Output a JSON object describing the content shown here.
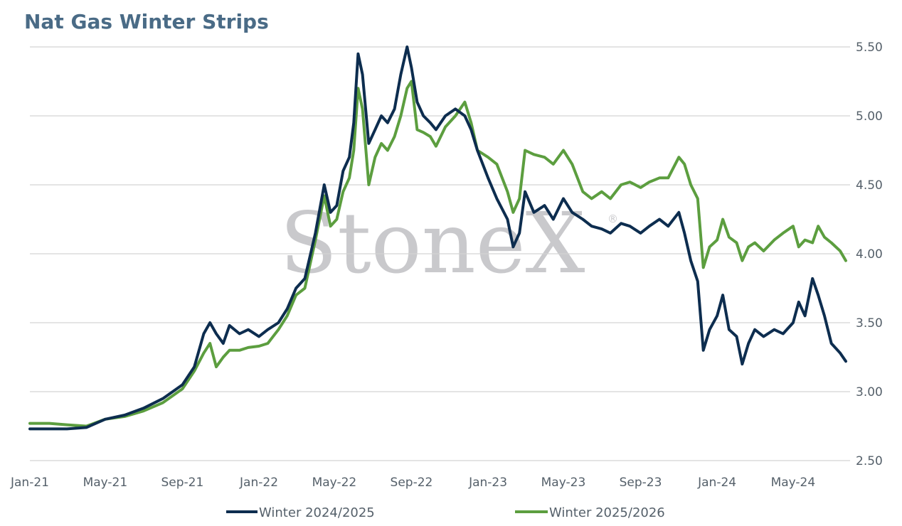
{
  "chart_data": {
    "type": "line",
    "title": "Nat Gas Winter Strips",
    "watermark": "StoneX",
    "watermark_mark": "®",
    "xlabel": "",
    "ylabel": "",
    "ylim": [
      2.5,
      5.5
    ],
    "y_ticks": [
      "2.50",
      "3.00",
      "3.50",
      "4.00",
      "4.50",
      "5.00",
      "5.50"
    ],
    "y_axis_position": "right",
    "grid": true,
    "legend_position": "bottom",
    "x_tick_labels": [
      "Jan-21",
      "May-21",
      "Sep-21",
      "Jan-22",
      "May-22",
      "Sep-22",
      "Jan-23",
      "May-23",
      "Sep-23",
      "Jan-24",
      "May-24"
    ],
    "x_range": [
      "2021-01-01",
      "2024-07-24"
    ],
    "x_ticks": [
      "2021-01-01",
      "2021-05-01",
      "2021-09-01",
      "2022-01-01",
      "2022-05-01",
      "2022-09-01",
      "2023-01-01",
      "2023-05-01",
      "2023-09-01",
      "2024-01-01",
      "2024-05-01"
    ],
    "series": [
      {
        "name": "Winter 2024/2025",
        "color": "#0d2d4f",
        "points": [
          [
            "2021-01-01",
            2.73
          ],
          [
            "2021-02-01",
            2.73
          ],
          [
            "2021-03-01",
            2.73
          ],
          [
            "2021-04-01",
            2.74
          ],
          [
            "2021-05-01",
            2.8
          ],
          [
            "2021-06-01",
            2.83
          ],
          [
            "2021-07-01",
            2.88
          ],
          [
            "2021-08-01",
            2.95
          ],
          [
            "2021-09-01",
            3.05
          ],
          [
            "2021-09-20",
            3.18
          ],
          [
            "2021-10-05",
            3.42
          ],
          [
            "2021-10-15",
            3.5
          ],
          [
            "2021-10-25",
            3.42
          ],
          [
            "2021-11-05",
            3.35
          ],
          [
            "2021-11-15",
            3.48
          ],
          [
            "2021-12-01",
            3.42
          ],
          [
            "2021-12-15",
            3.45
          ],
          [
            "2022-01-01",
            3.4
          ],
          [
            "2022-01-15",
            3.45
          ],
          [
            "2022-02-01",
            3.5
          ],
          [
            "2022-02-15",
            3.6
          ],
          [
            "2022-03-01",
            3.75
          ],
          [
            "2022-03-15",
            3.82
          ],
          [
            "2022-04-01",
            4.15
          ],
          [
            "2022-04-15",
            4.5
          ],
          [
            "2022-04-25",
            4.3
          ],
          [
            "2022-05-05",
            4.35
          ],
          [
            "2022-05-15",
            4.6
          ],
          [
            "2022-05-25",
            4.7
          ],
          [
            "2022-06-01",
            4.95
          ],
          [
            "2022-06-08",
            5.45
          ],
          [
            "2022-06-15",
            5.3
          ],
          [
            "2022-06-25",
            4.8
          ],
          [
            "2022-07-05",
            4.9
          ],
          [
            "2022-07-15",
            5.0
          ],
          [
            "2022-07-25",
            4.95
          ],
          [
            "2022-08-05",
            5.05
          ],
          [
            "2022-08-15",
            5.3
          ],
          [
            "2022-08-25",
            5.5
          ],
          [
            "2022-09-01",
            5.35
          ],
          [
            "2022-09-10",
            5.1
          ],
          [
            "2022-09-20",
            5.0
          ],
          [
            "2022-10-01",
            4.95
          ],
          [
            "2022-10-10",
            4.9
          ],
          [
            "2022-10-25",
            5.0
          ],
          [
            "2022-11-10",
            5.05
          ],
          [
            "2022-11-25",
            5.0
          ],
          [
            "2022-12-05",
            4.9
          ],
          [
            "2022-12-15",
            4.75
          ],
          [
            "2023-01-01",
            4.55
          ],
          [
            "2023-01-15",
            4.4
          ],
          [
            "2023-02-01",
            4.25
          ],
          [
            "2023-02-10",
            4.05
          ],
          [
            "2023-02-20",
            4.15
          ],
          [
            "2023-03-01",
            4.45
          ],
          [
            "2023-03-15",
            4.3
          ],
          [
            "2023-04-01",
            4.35
          ],
          [
            "2023-04-15",
            4.25
          ],
          [
            "2023-05-01",
            4.4
          ],
          [
            "2023-05-15",
            4.3
          ],
          [
            "2023-06-01",
            4.25
          ],
          [
            "2023-06-15",
            4.2
          ],
          [
            "2023-07-01",
            4.18
          ],
          [
            "2023-07-15",
            4.15
          ],
          [
            "2023-08-01",
            4.22
          ],
          [
            "2023-08-15",
            4.2
          ],
          [
            "2023-09-01",
            4.15
          ],
          [
            "2023-09-15",
            4.2
          ],
          [
            "2023-10-01",
            4.25
          ],
          [
            "2023-10-15",
            4.2
          ],
          [
            "2023-11-01",
            4.3
          ],
          [
            "2023-11-10",
            4.15
          ],
          [
            "2023-11-20",
            3.95
          ],
          [
            "2023-12-01",
            3.8
          ],
          [
            "2023-12-10",
            3.3
          ],
          [
            "2023-12-20",
            3.45
          ],
          [
            "2024-01-01",
            3.55
          ],
          [
            "2024-01-10",
            3.7
          ],
          [
            "2024-01-20",
            3.45
          ],
          [
            "2024-02-01",
            3.4
          ],
          [
            "2024-02-10",
            3.2
          ],
          [
            "2024-02-20",
            3.35
          ],
          [
            "2024-03-01",
            3.45
          ],
          [
            "2024-03-15",
            3.4
          ],
          [
            "2024-04-01",
            3.45
          ],
          [
            "2024-04-15",
            3.42
          ],
          [
            "2024-05-01",
            3.5
          ],
          [
            "2024-05-10",
            3.65
          ],
          [
            "2024-05-20",
            3.55
          ],
          [
            "2024-06-01",
            3.82
          ],
          [
            "2024-06-10",
            3.7
          ],
          [
            "2024-06-20",
            3.55
          ],
          [
            "2024-07-01",
            3.35
          ],
          [
            "2024-07-15",
            3.28
          ],
          [
            "2024-07-24",
            3.22
          ]
        ]
      },
      {
        "name": "Winter 2025/2026",
        "color": "#5c9e3f",
        "points": [
          [
            "2021-01-01",
            2.77
          ],
          [
            "2021-02-01",
            2.77
          ],
          [
            "2021-03-01",
            2.76
          ],
          [
            "2021-04-01",
            2.75
          ],
          [
            "2021-05-01",
            2.8
          ],
          [
            "2021-06-01",
            2.82
          ],
          [
            "2021-07-01",
            2.86
          ],
          [
            "2021-08-01",
            2.92
          ],
          [
            "2021-09-01",
            3.02
          ],
          [
            "2021-09-20",
            3.15
          ],
          [
            "2021-10-05",
            3.28
          ],
          [
            "2021-10-15",
            3.35
          ],
          [
            "2021-10-25",
            3.18
          ],
          [
            "2021-11-05",
            3.25
          ],
          [
            "2021-11-15",
            3.3
          ],
          [
            "2021-12-01",
            3.3
          ],
          [
            "2021-12-15",
            3.32
          ],
          [
            "2022-01-01",
            3.33
          ],
          [
            "2022-01-15",
            3.35
          ],
          [
            "2022-02-01",
            3.45
          ],
          [
            "2022-02-15",
            3.55
          ],
          [
            "2022-03-01",
            3.7
          ],
          [
            "2022-03-15",
            3.75
          ],
          [
            "2022-04-01",
            4.1
          ],
          [
            "2022-04-15",
            4.42
          ],
          [
            "2022-04-25",
            4.2
          ],
          [
            "2022-05-05",
            4.25
          ],
          [
            "2022-05-15",
            4.45
          ],
          [
            "2022-05-25",
            4.55
          ],
          [
            "2022-06-01",
            4.75
          ],
          [
            "2022-06-08",
            5.2
          ],
          [
            "2022-06-15",
            5.05
          ],
          [
            "2022-06-25",
            4.5
          ],
          [
            "2022-07-05",
            4.7
          ],
          [
            "2022-07-15",
            4.8
          ],
          [
            "2022-07-25",
            4.75
          ],
          [
            "2022-08-05",
            4.85
          ],
          [
            "2022-08-15",
            5.0
          ],
          [
            "2022-08-25",
            5.2
          ],
          [
            "2022-09-01",
            5.25
          ],
          [
            "2022-09-10",
            4.9
          ],
          [
            "2022-09-20",
            4.88
          ],
          [
            "2022-10-01",
            4.85
          ],
          [
            "2022-10-10",
            4.78
          ],
          [
            "2022-10-25",
            4.92
          ],
          [
            "2022-11-10",
            5.0
          ],
          [
            "2022-11-25",
            5.1
          ],
          [
            "2022-12-05",
            4.95
          ],
          [
            "2022-12-15",
            4.75
          ],
          [
            "2023-01-01",
            4.7
          ],
          [
            "2023-01-15",
            4.65
          ],
          [
            "2023-02-01",
            4.45
          ],
          [
            "2023-02-10",
            4.3
          ],
          [
            "2023-02-20",
            4.4
          ],
          [
            "2023-03-01",
            4.75
          ],
          [
            "2023-03-15",
            4.72
          ],
          [
            "2023-04-01",
            4.7
          ],
          [
            "2023-04-15",
            4.65
          ],
          [
            "2023-05-01",
            4.75
          ],
          [
            "2023-05-15",
            4.65
          ],
          [
            "2023-06-01",
            4.45
          ],
          [
            "2023-06-15",
            4.4
          ],
          [
            "2023-07-01",
            4.45
          ],
          [
            "2023-07-15",
            4.4
          ],
          [
            "2023-08-01",
            4.5
          ],
          [
            "2023-08-15",
            4.52
          ],
          [
            "2023-09-01",
            4.48
          ],
          [
            "2023-09-15",
            4.52
          ],
          [
            "2023-10-01",
            4.55
          ],
          [
            "2023-10-15",
            4.55
          ],
          [
            "2023-11-01",
            4.7
          ],
          [
            "2023-11-10",
            4.65
          ],
          [
            "2023-11-20",
            4.5
          ],
          [
            "2023-12-01",
            4.4
          ],
          [
            "2023-12-10",
            3.9
          ],
          [
            "2023-12-20",
            4.05
          ],
          [
            "2024-01-01",
            4.1
          ],
          [
            "2024-01-10",
            4.25
          ],
          [
            "2024-01-20",
            4.12
          ],
          [
            "2024-02-01",
            4.08
          ],
          [
            "2024-02-10",
            3.95
          ],
          [
            "2024-02-20",
            4.05
          ],
          [
            "2024-03-01",
            4.08
          ],
          [
            "2024-03-15",
            4.02
          ],
          [
            "2024-04-01",
            4.1
          ],
          [
            "2024-04-15",
            4.15
          ],
          [
            "2024-05-01",
            4.2
          ],
          [
            "2024-05-10",
            4.05
          ],
          [
            "2024-05-20",
            4.1
          ],
          [
            "2024-06-01",
            4.08
          ],
          [
            "2024-06-10",
            4.2
          ],
          [
            "2024-06-20",
            4.12
          ],
          [
            "2024-07-01",
            4.08
          ],
          [
            "2024-07-15",
            4.02
          ],
          [
            "2024-07-24",
            3.95
          ]
        ]
      }
    ]
  }
}
